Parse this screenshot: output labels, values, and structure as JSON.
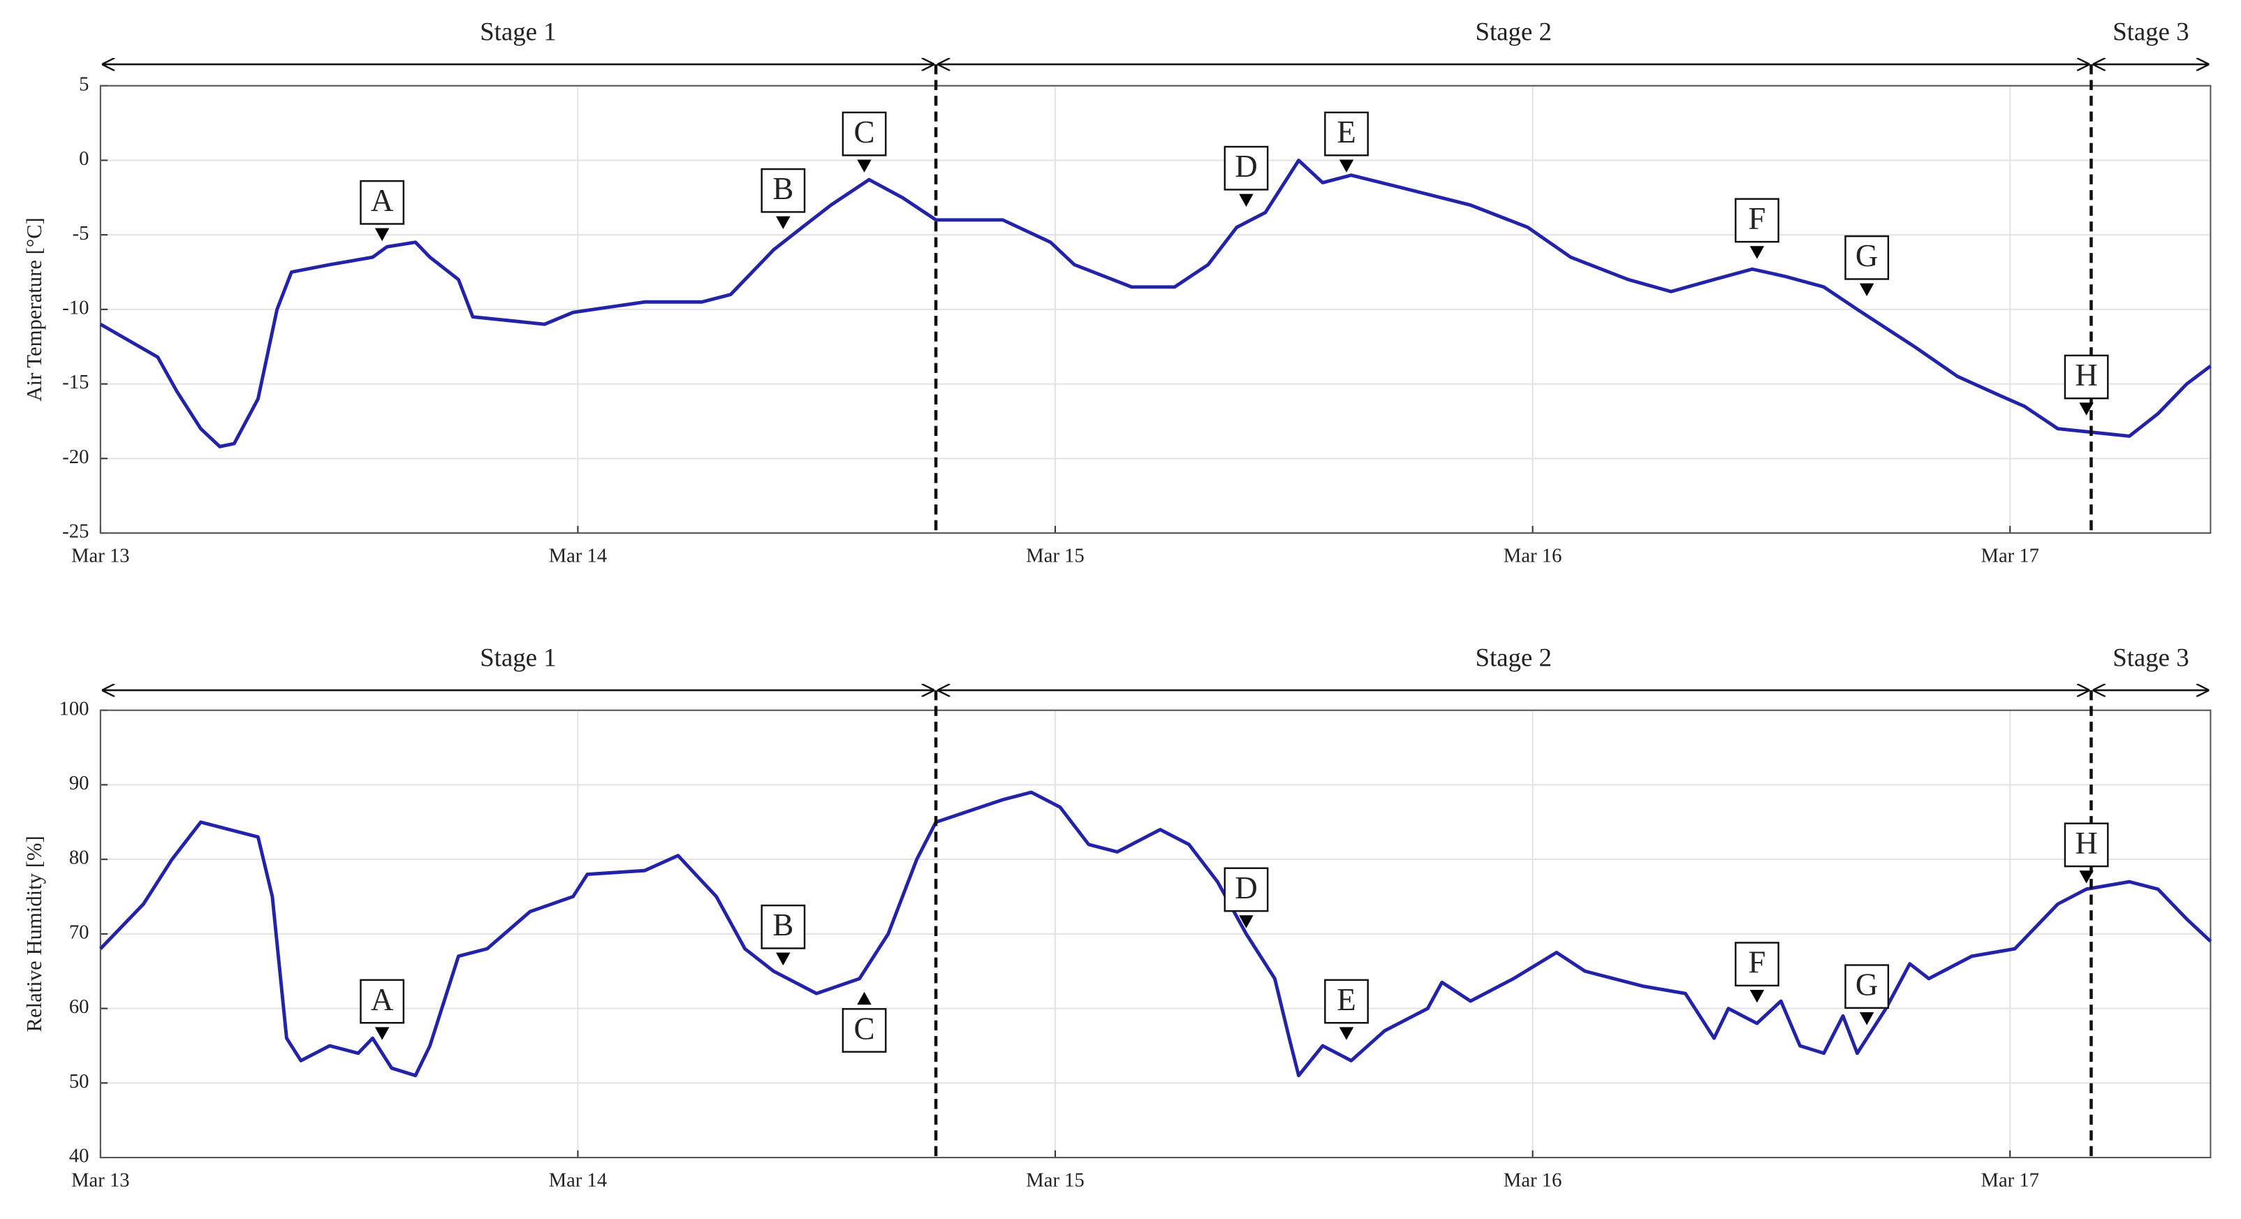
{
  "chart_data": [
    {
      "type": "line",
      "y_label": "Air Temperature [°C]",
      "color": "#2323a8",
      "xlim": [
        0,
        4.42
      ],
      "xticks": [
        {
          "value": 0,
          "label": "Mar 13"
        },
        {
          "value": 1,
          "label": "Mar 14"
        },
        {
          "value": 2,
          "label": "Mar 15"
        },
        {
          "value": 3,
          "label": "Mar 16"
        },
        {
          "value": 4,
          "label": "Mar 17"
        }
      ],
      "ylim": [
        -25,
        5
      ],
      "yticks": [
        -25,
        -20,
        -15,
        -10,
        -5,
        0,
        5
      ],
      "grid": true,
      "x": [
        0,
        0.12,
        0.16,
        0.21,
        0.25,
        0.28,
        0.33,
        0.37,
        0.4,
        0.48,
        0.57,
        0.6,
        0.66,
        0.69,
        0.75,
        0.78,
        0.87,
        0.93,
        0.99,
        1.14,
        1.26,
        1.32,
        1.41,
        1.47,
        1.53,
        1.61,
        1.68,
        1.75,
        1.89,
        1.99,
        2.04,
        2.16,
        2.25,
        2.32,
        2.38,
        2.44,
        2.49,
        2.51,
        2.56,
        2.62,
        2.72,
        2.87,
        2.99,
        3.08,
        3.2,
        3.29,
        3.38,
        3.46,
        3.53,
        3.61,
        3.68,
        3.8,
        3.89,
        3.98,
        4.03,
        4.1,
        4.19,
        4.25,
        4.31,
        4.37,
        4.42
      ],
      "values": [
        -11,
        -13.2,
        -15.5,
        -18,
        -19.2,
        -19,
        -16,
        -10,
        -7.5,
        -7,
        -6.5,
        -5.8,
        -5.5,
        -6.5,
        -8,
        -10.5,
        -10.8,
        -11,
        -10.2,
        -9.5,
        -9.5,
        -9,
        -6,
        -4.5,
        -3,
        -1.3,
        -2.5,
        -4,
        -4,
        -5.5,
        -7,
        -8.5,
        -8.5,
        -7,
        -4.5,
        -3.5,
        -1,
        0,
        -1.5,
        -1,
        -1.8,
        -3,
        -4.5,
        -6.5,
        -8,
        -8.8,
        -8,
        -7.3,
        -7.8,
        -8.5,
        -10,
        -12.5,
        -14.5,
        -15.8,
        -16.5,
        -18,
        -18.3,
        -18.5,
        -17,
        -15,
        -13.8
      ],
      "stages": [
        {
          "label": "Stage 1",
          "start": 0,
          "end": 1.75
        },
        {
          "label": "Stage 2",
          "start": 1.75,
          "end": 4.17
        },
        {
          "label": "Stage 3",
          "start": 4.17,
          "end": 4.42
        }
      ],
      "annotations": [
        {
          "label": "A",
          "x": 0.59,
          "y": -5.8,
          "position": "above"
        },
        {
          "label": "B",
          "x": 1.43,
          "y": -5,
          "position": "above"
        },
        {
          "label": "C",
          "x": 1.6,
          "y": -1.2,
          "position": "above"
        },
        {
          "label": "D",
          "x": 2.4,
          "y": -3.5,
          "position": "above"
        },
        {
          "label": "E",
          "x": 2.61,
          "y": -1.2,
          "position": "above"
        },
        {
          "label": "F",
          "x": 3.47,
          "y": -7,
          "position": "above"
        },
        {
          "label": "G",
          "x": 3.7,
          "y": -9.5,
          "position": "above"
        },
        {
          "label": "H",
          "x": 4.16,
          "y": -17.5,
          "position": "above"
        }
      ]
    },
    {
      "type": "line",
      "y_label": "Relative Humidity [%]",
      "color": "#2323a8",
      "xlim": [
        0,
        4.42
      ],
      "xticks": [
        {
          "value": 0,
          "label": "Mar 13"
        },
        {
          "value": 1,
          "label": "Mar 14"
        },
        {
          "value": 2,
          "label": "Mar 15"
        },
        {
          "value": 3,
          "label": "Mar 16"
        },
        {
          "value": 4,
          "label": "Mar 17"
        }
      ],
      "ylim": [
        40,
        100
      ],
      "yticks": [
        40,
        50,
        60,
        70,
        80,
        90,
        100
      ],
      "grid": true,
      "x": [
        0,
        0.09,
        0.15,
        0.21,
        0.27,
        0.33,
        0.36,
        0.39,
        0.42,
        0.48,
        0.54,
        0.57,
        0.61,
        0.66,
        0.69,
        0.75,
        0.81,
        0.9,
        0.99,
        1.02,
        1.14,
        1.21,
        1.29,
        1.35,
        1.41,
        1.5,
        1.59,
        1.65,
        1.71,
        1.75,
        1.89,
        1.95,
        2.01,
        2.07,
        2.13,
        2.22,
        2.28,
        2.34,
        2.4,
        2.46,
        2.49,
        2.51,
        2.56,
        2.62,
        2.69,
        2.78,
        2.81,
        2.87,
        2.96,
        3.05,
        3.11,
        3.23,
        3.32,
        3.38,
        3.41,
        3.47,
        3.52,
        3.56,
        3.61,
        3.65,
        3.68,
        3.74,
        3.79,
        3.83,
        3.92,
        4.01,
        4.1,
        4.16,
        4.25,
        4.31,
        4.37,
        4.42
      ],
      "values": [
        68,
        74,
        80,
        85,
        84,
        83,
        75,
        56,
        53,
        55,
        54,
        56,
        52,
        51,
        55,
        67,
        68,
        73,
        75,
        78,
        78.5,
        80.5,
        75,
        68,
        65,
        62,
        64,
        70,
        80,
        85,
        88,
        89,
        87,
        82,
        81,
        84,
        82,
        77,
        70,
        64,
        56,
        51,
        55,
        53,
        57,
        60,
        63.5,
        61,
        64,
        67.5,
        65,
        63,
        62,
        56,
        60,
        58,
        61,
        55,
        54,
        59,
        54,
        60,
        66,
        64,
        67,
        68,
        74,
        76,
        77,
        76,
        72,
        69
      ],
      "stages": [
        {
          "label": "Stage 1",
          "start": 0,
          "end": 1.75
        },
        {
          "label": "Stage 2",
          "start": 1.75,
          "end": 4.17
        },
        {
          "label": "Stage 3",
          "start": 4.17,
          "end": 4.42
        }
      ],
      "annotations": [
        {
          "label": "A",
          "x": 0.59,
          "y": 55,
          "position": "above"
        },
        {
          "label": "B",
          "x": 1.43,
          "y": 65,
          "position": "above"
        },
        {
          "label": "C",
          "x": 1.6,
          "y": 63,
          "position": "below"
        },
        {
          "label": "D",
          "x": 2.4,
          "y": 70,
          "position": "above"
        },
        {
          "label": "E",
          "x": 2.61,
          "y": 55,
          "position": "above"
        },
        {
          "label": "F",
          "x": 3.47,
          "y": 60,
          "position": "above"
        },
        {
          "label": "G",
          "x": 3.7,
          "y": 57,
          "position": "above"
        },
        {
          "label": "H",
          "x": 4.16,
          "y": 76,
          "position": "above"
        }
      ]
    }
  ]
}
